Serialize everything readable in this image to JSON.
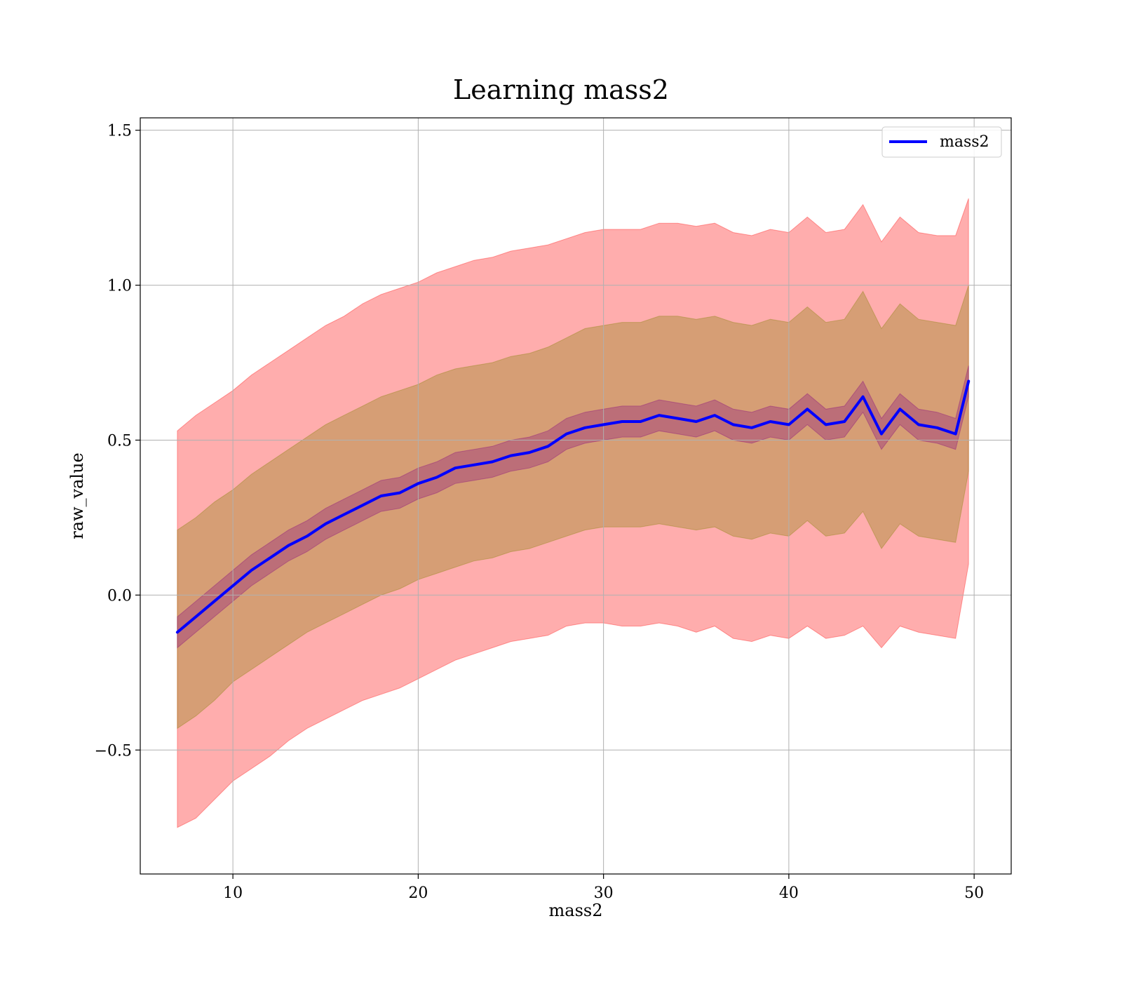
{
  "chart_data": {
    "type": "line",
    "title": "Learning mass2",
    "xlabel": "mass2",
    "ylabel": "raw_value",
    "xlim": [
      5,
      52
    ],
    "ylim": [
      -0.9,
      1.54
    ],
    "grid": true,
    "legend_placement": "top-right",
    "x_ticks": [
      10,
      20,
      30,
      40,
      50
    ],
    "x_tick_labels": [
      "10",
      "20",
      "30",
      "40",
      "50"
    ],
    "y_ticks": [
      -0.5,
      0.0,
      0.5,
      1.0,
      1.5
    ],
    "y_tick_labels": [
      "−0.5",
      "0.0",
      "0.5",
      "1.0",
      "1.5"
    ],
    "series": [
      {
        "name": "mass2",
        "color": "#0000ff",
        "x": [
          7.0,
          8.0,
          9.0,
          10.0,
          11.0,
          12.0,
          13.0,
          14.0,
          15.0,
          16.0,
          17.0,
          18.0,
          19.0,
          20.0,
          21.0,
          22.0,
          23.0,
          24.0,
          25.0,
          26.0,
          27.0,
          28.0,
          29.0,
          30.0,
          31.0,
          32.0,
          33.0,
          34.0,
          35.0,
          36.0,
          37.0,
          38.0,
          39.0,
          40.0,
          41.0,
          42.0,
          43.0,
          44.0,
          45.0,
          46.0,
          47.0,
          48.0,
          49.0,
          49.7
        ],
        "y": [
          -0.12,
          -0.07,
          -0.02,
          0.03,
          0.08,
          0.12,
          0.16,
          0.19,
          0.23,
          0.26,
          0.29,
          0.32,
          0.33,
          0.36,
          0.38,
          0.41,
          0.42,
          0.43,
          0.45,
          0.46,
          0.48,
          0.52,
          0.54,
          0.55,
          0.56,
          0.56,
          0.58,
          0.57,
          0.56,
          0.58,
          0.55,
          0.54,
          0.56,
          0.55,
          0.6,
          0.55,
          0.56,
          0.64,
          0.52,
          0.6,
          0.55,
          0.54,
          0.52,
          0.69
        ]
      }
    ],
    "bands": [
      {
        "color": "#ff0000",
        "opacity": 0.32,
        "lower": [
          -0.75,
          -0.72,
          -0.66,
          -0.6,
          -0.56,
          -0.52,
          -0.47,
          -0.43,
          -0.4,
          -0.37,
          -0.34,
          -0.32,
          -0.3,
          -0.27,
          -0.24,
          -0.21,
          -0.19,
          -0.17,
          -0.15,
          -0.14,
          -0.13,
          -0.1,
          -0.09,
          -0.09,
          -0.1,
          -0.1,
          -0.09,
          -0.1,
          -0.12,
          -0.1,
          -0.14,
          -0.15,
          -0.13,
          -0.14,
          -0.1,
          -0.14,
          -0.13,
          -0.1,
          -0.17,
          -0.1,
          -0.12,
          -0.13,
          -0.14,
          0.1
        ],
        "upper": [
          0.53,
          0.58,
          0.62,
          0.66,
          0.71,
          0.75,
          0.79,
          0.83,
          0.87,
          0.9,
          0.94,
          0.97,
          0.99,
          1.01,
          1.04,
          1.06,
          1.08,
          1.09,
          1.11,
          1.12,
          1.13,
          1.15,
          1.17,
          1.18,
          1.18,
          1.18,
          1.2,
          1.2,
          1.19,
          1.2,
          1.17,
          1.16,
          1.18,
          1.17,
          1.22,
          1.17,
          1.18,
          1.26,
          1.14,
          1.22,
          1.17,
          1.16,
          1.16,
          1.28
        ]
      },
      {
        "color": "#808000",
        "opacity": 0.32,
        "lower": [
          -0.43,
          -0.39,
          -0.34,
          -0.28,
          -0.24,
          -0.2,
          -0.16,
          -0.12,
          -0.09,
          -0.06,
          -0.03,
          0.0,
          0.02,
          0.05,
          0.07,
          0.09,
          0.11,
          0.12,
          0.14,
          0.15,
          0.17,
          0.19,
          0.21,
          0.22,
          0.22,
          0.22,
          0.23,
          0.22,
          0.21,
          0.22,
          0.19,
          0.18,
          0.2,
          0.19,
          0.24,
          0.19,
          0.2,
          0.27,
          0.15,
          0.23,
          0.19,
          0.18,
          0.17,
          0.4
        ],
        "upper": [
          0.21,
          0.25,
          0.3,
          0.34,
          0.39,
          0.43,
          0.47,
          0.51,
          0.55,
          0.58,
          0.61,
          0.64,
          0.66,
          0.68,
          0.71,
          0.73,
          0.74,
          0.75,
          0.77,
          0.78,
          0.8,
          0.83,
          0.86,
          0.87,
          0.88,
          0.88,
          0.9,
          0.9,
          0.89,
          0.9,
          0.88,
          0.87,
          0.89,
          0.88,
          0.93,
          0.88,
          0.89,
          0.98,
          0.86,
          0.94,
          0.89,
          0.88,
          0.87,
          1.0
        ]
      },
      {
        "color": "#800080",
        "opacity": 0.3,
        "lower": [
          -0.17,
          -0.12,
          -0.07,
          -0.02,
          0.03,
          0.07,
          0.11,
          0.14,
          0.18,
          0.21,
          0.24,
          0.27,
          0.28,
          0.31,
          0.33,
          0.36,
          0.37,
          0.38,
          0.4,
          0.41,
          0.43,
          0.47,
          0.49,
          0.5,
          0.51,
          0.51,
          0.53,
          0.52,
          0.51,
          0.53,
          0.5,
          0.49,
          0.51,
          0.5,
          0.55,
          0.5,
          0.51,
          0.59,
          0.47,
          0.55,
          0.5,
          0.49,
          0.47,
          0.64
        ],
        "upper": [
          -0.07,
          -0.02,
          0.03,
          0.08,
          0.13,
          0.17,
          0.21,
          0.24,
          0.28,
          0.31,
          0.34,
          0.37,
          0.38,
          0.41,
          0.43,
          0.46,
          0.47,
          0.48,
          0.5,
          0.51,
          0.53,
          0.57,
          0.59,
          0.6,
          0.61,
          0.61,
          0.63,
          0.62,
          0.61,
          0.63,
          0.6,
          0.59,
          0.61,
          0.6,
          0.65,
          0.6,
          0.61,
          0.69,
          0.57,
          0.65,
          0.6,
          0.59,
          0.57,
          0.74
        ]
      }
    ]
  }
}
